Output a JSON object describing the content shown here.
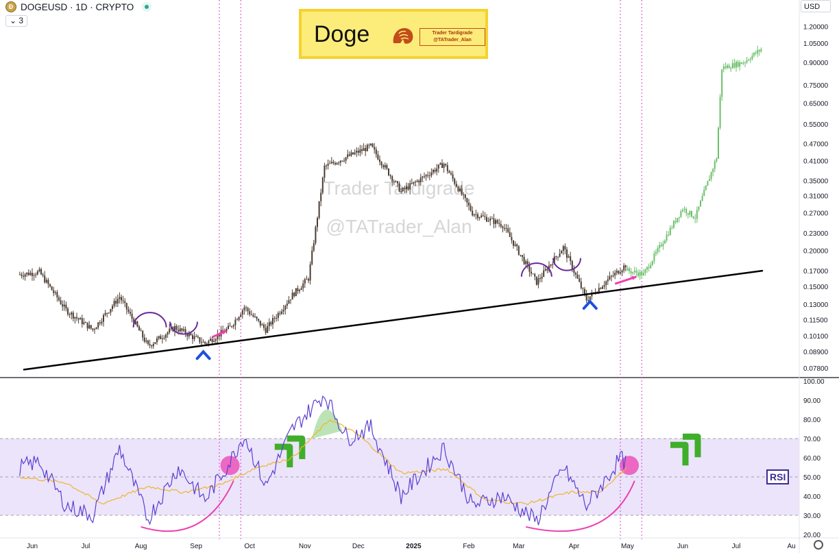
{
  "header": {
    "symbol_title": "DOGEUSD · 1D · CRYPTO",
    "indicator_count": "3",
    "currency": "USD"
  },
  "overlay": {
    "logo_title": "Doge",
    "logo_tag_line1": "Trader Tardigrade",
    "logo_tag_line2": "@TATrader_Alan",
    "watermark_line1": "Trader Tardigrade",
    "watermark_line2": "@TATrader_Alan",
    "rsi_badge": "RSI"
  },
  "colors": {
    "candle_dark": "#4a3a30",
    "candle_projection": "#6abf69",
    "trendline": "#000000",
    "arc": "#6a2a9a",
    "arrow_pink": "#ee3fb0",
    "caret_blue": "#1d4fe0",
    "rsi_line": "#5b3fd0",
    "rsi_ma": "#f0b429",
    "rsi_band": "#ebe4fb",
    "green_hint": "#3fae2a",
    "vline": "#e040c0"
  },
  "chart_data": [
    {
      "type": "candlestick",
      "title": "DOGEUSD · 1D · CRYPTO",
      "scale": "log",
      "ylim": [
        0.0735,
        1.25
      ],
      "y_ticks": [
        "1.20000",
        "1.05000",
        "0.90000",
        "0.75000",
        "0.65000",
        "0.55000",
        "0.47000",
        "0.41000",
        "0.35000",
        "0.31000",
        "0.27000",
        "0.23000",
        "0.20000",
        "0.17000",
        "0.15000",
        "0.13000",
        "0.11500",
        "0.10100",
        "0.08900",
        "0.07800"
      ],
      "x_ticks": [
        "Jun",
        "Jul",
        "Aug",
        "Sep",
        "Oct",
        "Nov",
        "Dec",
        "2025",
        "Feb",
        "Mar",
        "Apr",
        "May",
        "Jun",
        "Jul",
        "Au"
      ],
      "price_path": [
        {
          "date": "2024-05-25",
          "close": 0.165
        },
        {
          "date": "2024-06-05",
          "close": 0.168
        },
        {
          "date": "2024-06-20",
          "close": 0.124
        },
        {
          "date": "2024-07-05",
          "close": 0.106
        },
        {
          "date": "2024-07-20",
          "close": 0.138
        },
        {
          "date": "2024-08-05",
          "close": 0.093
        },
        {
          "date": "2024-08-20",
          "close": 0.108
        },
        {
          "date": "2024-09-06",
          "close": 0.095
        },
        {
          "date": "2024-09-20",
          "close": 0.108
        },
        {
          "date": "2024-09-28",
          "close": 0.127
        },
        {
          "date": "2024-10-10",
          "close": 0.106
        },
        {
          "date": "2024-10-25",
          "close": 0.14
        },
        {
          "date": "2024-11-03",
          "close": 0.16
        },
        {
          "date": "2024-11-12",
          "close": 0.39
        },
        {
          "date": "2024-12-08",
          "close": 0.46
        },
        {
          "date": "2024-12-25",
          "close": 0.32
        },
        {
          "date": "2025-01-18",
          "close": 0.4
        },
        {
          "date": "2025-02-03",
          "close": 0.27
        },
        {
          "date": "2025-02-20",
          "close": 0.245
        },
        {
          "date": "2025-03-11",
          "close": 0.155
        },
        {
          "date": "2025-03-26",
          "close": 0.205
        },
        {
          "date": "2025-04-08",
          "close": 0.135
        },
        {
          "date": "2025-04-20",
          "close": 0.158
        },
        {
          "date": "2025-05-01",
          "close": 0.18
        }
      ],
      "projection_path": [
        {
          "date": "2025-05-01",
          "close": 0.17
        },
        {
          "date": "2025-05-10",
          "close": 0.165
        },
        {
          "date": "2025-06-01",
          "close": 0.28
        },
        {
          "date": "2025-06-08",
          "close": 0.26
        },
        {
          "date": "2025-06-20",
          "close": 0.42
        },
        {
          "date": "2025-06-23",
          "close": 0.86
        },
        {
          "date": "2025-07-05",
          "close": 0.9
        },
        {
          "date": "2025-07-15",
          "close": 1.0
        }
      ],
      "trendline": [
        {
          "date": "2024-05-27",
          "price": 0.077
        },
        {
          "date": "2025-07-16",
          "price": 0.17
        }
      ],
      "vertical_markers": [
        "2024-09-14",
        "2024-09-26",
        "2025-04-27",
        "2025-05-09"
      ]
    },
    {
      "type": "line",
      "title": "RSI",
      "ylim": [
        20,
        100
      ],
      "y_ticks": [
        "100.00",
        "90.00",
        "80.00",
        "70.00",
        "60.00",
        "50.00",
        "40.00",
        "30.00",
        "20.00"
      ],
      "band": [
        30,
        70
      ],
      "midline": 50,
      "series": [
        {
          "points": [
            {
              "date": "2024-05-25",
              "rsi": 55
            },
            {
              "date": "2024-06-05",
              "rsi": 58
            },
            {
              "date": "2024-06-20",
              "rsi": 35
            },
            {
              "date": "2024-07-05",
              "rsi": 30
            },
            {
              "date": "2024-07-20",
              "rsi": 65
            },
            {
              "date": "2024-08-05",
              "rsi": 28
            },
            {
              "date": "2024-08-22",
              "rsi": 55
            },
            {
              "date": "2024-09-06",
              "rsi": 38
            },
            {
              "date": "2024-09-20",
              "rsi": 58
            },
            {
              "date": "2024-09-28",
              "rsi": 72
            },
            {
              "date": "2024-10-10",
              "rsi": 45
            },
            {
              "date": "2024-10-25",
              "rsi": 75
            },
            {
              "date": "2024-11-12",
              "rsi": 93
            },
            {
              "date": "2024-11-25",
              "rsi": 70
            },
            {
              "date": "2024-12-08",
              "rsi": 76
            },
            {
              "date": "2024-12-25",
              "rsi": 40
            },
            {
              "date": "2025-01-18",
              "rsi": 65
            },
            {
              "date": "2025-02-03",
              "rsi": 35
            },
            {
              "date": "2025-02-20",
              "rsi": 40
            },
            {
              "date": "2025-03-11",
              "rsi": 27
            },
            {
              "date": "2025-03-26",
              "rsi": 55
            },
            {
              "date": "2025-04-08",
              "rsi": 35
            },
            {
              "date": "2025-04-20",
              "rsi": 50
            },
            {
              "date": "2025-04-27",
              "rsi": 60
            },
            {
              "date": "2025-05-01",
              "rsi": 56
            }
          ]
        },
        {
          "points": [
            {
              "date": "2024-05-25",
              "rsi": 50
            },
            {
              "date": "2024-06-20",
              "rsi": 47
            },
            {
              "date": "2024-07-10",
              "rsi": 36
            },
            {
              "date": "2024-08-05",
              "rsi": 45
            },
            {
              "date": "2024-08-25",
              "rsi": 42
            },
            {
              "date": "2024-09-15",
              "rsi": 46
            },
            {
              "date": "2024-10-05",
              "rsi": 55
            },
            {
              "date": "2024-10-25",
              "rsi": 60
            },
            {
              "date": "2024-11-15",
              "rsi": 80
            },
            {
              "date": "2024-12-01",
              "rsi": 72
            },
            {
              "date": "2024-12-25",
              "rsi": 52
            },
            {
              "date": "2025-01-20",
              "rsi": 54
            },
            {
              "date": "2025-02-10",
              "rsi": 38
            },
            {
              "date": "2025-03-05",
              "rsi": 36
            },
            {
              "date": "2025-03-30",
              "rsi": 42
            },
            {
              "date": "2025-04-15",
              "rsi": 42
            },
            {
              "date": "2025-05-01",
              "rsi": 55
            }
          ]
        }
      ]
    }
  ]
}
